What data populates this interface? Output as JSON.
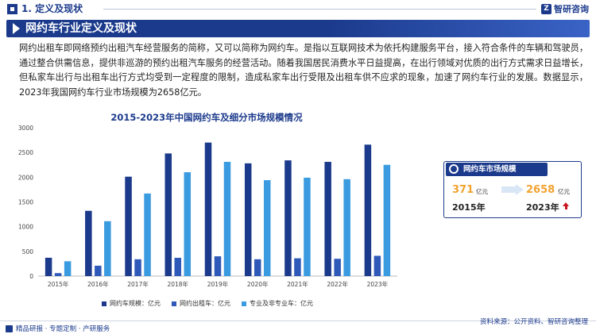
{
  "header": {
    "section_title": "1. 定义及现状",
    "logo_text": "智研咨询"
  },
  "banner": {
    "title": "网约车行业定义及现状"
  },
  "body": {
    "text": "网约出租车即网络预约出租汽车经营服务的简称，又可以简称为网约车。是指以互联网技术为依托构建服务平台，接入符合条件的车辆和驾驶员，通过整合供需信息，提供非巡游的预约出租汽车服务的经营活动。随着我国居民消费水平日益提高，在出行领域对优质的出行方式需求日益增长，但私家车出行与出租车出行方式均受到一定程度的限制，造成私家车出行受限及出租车供不应求的现象，加速了网约车行业的发展。数据显示，2023年我国网约车行业市场规模为2658亿元。"
  },
  "chart_data": {
    "type": "bar",
    "title": "2015-2023年中国网约车及细分市场规模情况",
    "categories": [
      "2015年",
      "2016年",
      "2017年",
      "2018年",
      "2019年",
      "2020年",
      "2021年",
      "2022年",
      "2023年"
    ],
    "series": [
      {
        "name": "网约车规模：亿元",
        "color": "#1b3a8c",
        "values": [
          371,
          1320,
          2010,
          2480,
          2700,
          2280,
          2340,
          2310,
          2658
        ]
      },
      {
        "name": "网约出租车：亿元",
        "color": "#2e59b8",
        "values": [
          60,
          210,
          340,
          370,
          400,
          340,
          360,
          350,
          410
        ]
      },
      {
        "name": "专业及非专业车：亿元",
        "color": "#3a9be0",
        "values": [
          300,
          1110,
          1670,
          2100,
          2310,
          1940,
          1990,
          1960,
          2250
        ]
      }
    ],
    "ylim": [
      0,
      3000
    ],
    "yticks": [
      0,
      500,
      1000,
      1500,
      2000,
      2500,
      3000
    ],
    "xlabel": "",
    "ylabel": "",
    "grid": false,
    "legend_position": "bottom"
  },
  "card": {
    "title": "网约车市场规模",
    "start_value": "371",
    "start_unit": "亿元",
    "start_year": "2015年",
    "end_value": "2658",
    "end_unit": "亿元",
    "end_year": "2023年"
  },
  "footer": {
    "left": "精品研报 · 专题定制 · 产研服务",
    "right": "资料来源：公开资料、智研咨询整理"
  }
}
